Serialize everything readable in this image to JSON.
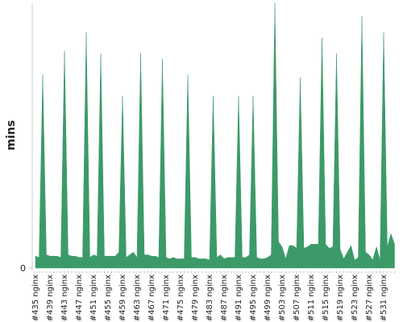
{
  "chart_data": {
    "type": "area",
    "y_label": "mins",
    "color": "#3c9a68",
    "ylim": [
      0,
      10
    ],
    "yticks": [
      0
    ],
    "categories": [
      "#435 nginx",
      null,
      null,
      null,
      "#439 nginx",
      null,
      null,
      null,
      "#443 nginx",
      null,
      null,
      null,
      "#447 nginx",
      null,
      null,
      null,
      "#451 nginx",
      null,
      null,
      null,
      "#455 nginx",
      null,
      null,
      null,
      "#459 nginx",
      null,
      null,
      null,
      "#463 nginx",
      null,
      null,
      null,
      "#467 nginx",
      null,
      null,
      null,
      "#471 nginx",
      null,
      null,
      null,
      "#475 nginx",
      null,
      null,
      null,
      "#479 nginx",
      null,
      null,
      null,
      "#483 nginx",
      null,
      null,
      null,
      "#487 nginx",
      null,
      null,
      null,
      "#491 nginx",
      null,
      null,
      null,
      "#495 nginx",
      null,
      null,
      null,
      "#499 nginx",
      null,
      null,
      null,
      "#503 nginx",
      null,
      null,
      null,
      "#507 nginx",
      null,
      null,
      null,
      "#511 nginx",
      null,
      null,
      null,
      "#515 nginx",
      null,
      null,
      null,
      "#519 nginx",
      null,
      null,
      null,
      "#523 nginx",
      null,
      null,
      null,
      "#527 nginx",
      null,
      null,
      null,
      "#531 nginx",
      null,
      null,
      null
    ],
    "values": [
      0.45,
      0.4,
      7.3,
      0.5,
      0.45,
      0.45,
      0.45,
      0.4,
      8.2,
      0.5,
      0.45,
      0.45,
      0.4,
      0.4,
      8.9,
      0.4,
      0.5,
      0.45,
      8.1,
      0.45,
      0.45,
      0.45,
      0.45,
      0.6,
      6.5,
      0.4,
      0.5,
      0.6,
      0.4,
      8.1,
      0.5,
      0.5,
      0.45,
      0.45,
      0.4,
      7.9,
      0.4,
      0.35,
      0.4,
      0.35,
      0.35,
      0.35,
      7.3,
      0.4,
      0.4,
      0.35,
      0.35,
      0.35,
      0.3,
      6.5,
      0.4,
      0.5,
      0.35,
      0.4,
      0.4,
      0.4,
      6.5,
      0.4,
      0.4,
      0.5,
      6.5,
      0.4,
      0.35,
      0.35,
      0.4,
      0.5,
      10,
      1.0,
      0.8,
      0.35,
      0.85,
      0.85,
      0.75,
      7.2,
      0.75,
      0.8,
      0.9,
      0.9,
      0.9,
      8.7,
      0.9,
      0.75,
      0.8,
      8.1,
      0.7,
      0.35,
      0.6,
      0.85,
      0.3,
      0.4,
      9.5,
      0.6,
      0.5,
      0.3,
      0.8,
      0.3,
      8.9,
      0.8,
      1.3,
      0.9
    ]
  }
}
